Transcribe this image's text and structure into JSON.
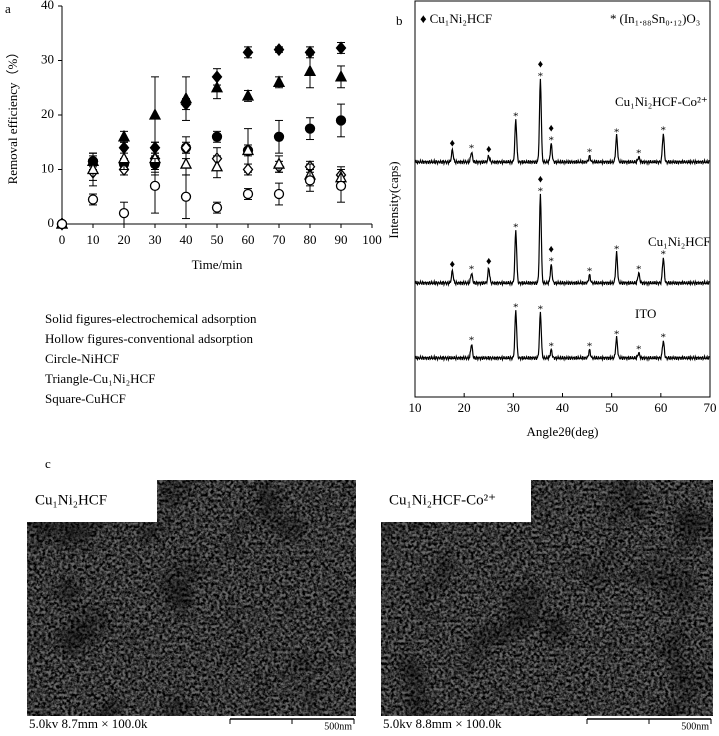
{
  "chart_data": [
    {
      "type": "scatter",
      "panel": "a",
      "xlabel": "Time/min",
      "ylabel": "Removal efficiency（%）",
      "x": [
        0,
        10,
        20,
        30,
        40,
        50,
        60,
        70,
        80,
        90
      ],
      "xlim": [
        0,
        100
      ],
      "xticks": [
        0,
        10,
        20,
        30,
        40,
        50,
        60,
        70,
        80,
        90,
        100
      ],
      "ylim": [
        0,
        40
      ],
      "yticks": [
        0,
        10,
        20,
        30,
        40
      ],
      "series": [
        {
          "marker": "diamond",
          "filled": true,
          "values": [
            0,
            11.5,
            14,
            14,
            22,
            27,
            31.5,
            32,
            31.5,
            32.3
          ],
          "errors": [
            0,
            1,
            1,
            1,
            1,
            1.5,
            1,
            0.5,
            1,
            1
          ]
        },
        {
          "marker": "triangle",
          "filled": true,
          "values": [
            0,
            11.5,
            16,
            20,
            23,
            25,
            23.5,
            26,
            28,
            27
          ],
          "errors": [
            0,
            1.5,
            1,
            7,
            4,
            2,
            1,
            1,
            3,
            2
          ]
        },
        {
          "marker": "circle",
          "filled": true,
          "values": [
            0,
            11.5,
            11,
            11,
            14,
            16,
            13.5,
            16,
            17.5,
            19
          ],
          "errors": [
            0,
            1.5,
            1,
            1.5,
            1,
            1,
            4,
            3,
            2,
            3
          ]
        },
        {
          "marker": "diamond",
          "filled": false,
          "values": [
            0,
            9.5,
            10,
            12,
            14,
            12,
            10,
            10.5,
            10.5,
            9
          ],
          "errors": [
            0,
            1.5,
            1,
            2,
            2,
            2,
            1,
            1,
            1,
            1
          ]
        },
        {
          "marker": "triangle",
          "filled": false,
          "values": [
            0,
            10,
            12,
            12,
            11,
            10.5,
            13.5,
            11,
            9,
            8.5
          ],
          "errors": [
            0,
            3,
            2,
            3,
            2,
            2,
            1,
            1.5,
            2,
            2
          ]
        },
        {
          "marker": "circle",
          "filled": false,
          "values": [
            0,
            4.5,
            2,
            7,
            5,
            3,
            5.5,
            5.5,
            8,
            7
          ],
          "errors": [
            0,
            1,
            2,
            5,
            4,
            1,
            1,
            2,
            2,
            3
          ]
        }
      ],
      "notes": [
        "Solid figures-electrochemical adsorption",
        "Hollow figures-conventional adsorption",
        "Circle-NiHCF",
        "Triangle-Cu₁Ni₂HCF",
        "Square-CuHCF"
      ]
    },
    {
      "type": "xrd",
      "panel": "b",
      "xlabel": "Angle2θ(deg)",
      "ylabel": "Intensity(caps)",
      "xlim": [
        10,
        70
      ],
      "xticks": [
        10,
        20,
        30,
        40,
        50,
        60,
        70
      ],
      "legend": [
        {
          "symbol": "♦",
          "name": "Cu₁Ni₂HCF"
        },
        {
          "symbol": "*",
          "name": "(In₁.₈₈Sn₀.₁₂)O₃"
        }
      ],
      "series": [
        {
          "name": "Cu₁Ni₂HCF-Co²⁺",
          "peaks": [
            {
              "angle": 17.6,
              "intensity": 12,
              "phase": "diamond"
            },
            {
              "angle": 21.5,
              "intensity": 10,
              "phase": "star"
            },
            {
              "angle": 25,
              "intensity": 6,
              "phase": "diamond"
            },
            {
              "angle": 30.5,
              "intensity": 42,
              "phase": "star"
            },
            {
              "angle": 35.5,
              "intensity": 82,
              "phase": "both"
            },
            {
              "angle": 37.7,
              "intensity": 18,
              "phase": "both"
            },
            {
              "angle": 45.5,
              "intensity": 6,
              "phase": "star"
            },
            {
              "angle": 51,
              "intensity": 26,
              "phase": "star"
            },
            {
              "angle": 55.5,
              "intensity": 5,
              "phase": "star"
            },
            {
              "angle": 60.5,
              "intensity": 28,
              "phase": "star"
            }
          ]
        },
        {
          "name": "Cu₁Ni₂HCF",
          "peaks": [
            {
              "angle": 17.6,
              "intensity": 12,
              "phase": "diamond"
            },
            {
              "angle": 21.5,
              "intensity": 10,
              "phase": "star"
            },
            {
              "angle": 25,
              "intensity": 15,
              "phase": "diamond"
            },
            {
              "angle": 30.5,
              "intensity": 52,
              "phase": "star"
            },
            {
              "angle": 35.5,
              "intensity": 88,
              "phase": "both"
            },
            {
              "angle": 37.7,
              "intensity": 18,
              "phase": "both"
            },
            {
              "angle": 45.5,
              "intensity": 8,
              "phase": "star"
            },
            {
              "angle": 51,
              "intensity": 30,
              "phase": "star"
            },
            {
              "angle": 55.5,
              "intensity": 10,
              "phase": "star"
            },
            {
              "angle": 60.5,
              "intensity": 25,
              "phase": "star"
            }
          ]
        },
        {
          "name": "ITO",
          "peaks": [
            {
              "angle": 21.5,
              "intensity": 14,
              "phase": "star"
            },
            {
              "angle": 30.5,
              "intensity": 47,
              "phase": "star"
            },
            {
              "angle": 35.5,
              "intensity": 45,
              "phase": "star"
            },
            {
              "angle": 37.7,
              "intensity": 8,
              "phase": "star"
            },
            {
              "angle": 45.5,
              "intensity": 8,
              "phase": "star"
            },
            {
              "angle": 51,
              "intensity": 20,
              "phase": "star"
            },
            {
              "angle": 55.5,
              "intensity": 5,
              "phase": "star"
            },
            {
              "angle": 60.5,
              "intensity": 17,
              "phase": "star"
            }
          ]
        }
      ]
    }
  ],
  "sem": {
    "panel": "c",
    "images": [
      {
        "label": "Cu₁Ni₂HCF",
        "info": "5.0kv 8.7mm × 100.0k",
        "scale": "500nm"
      },
      {
        "label": "Cu₁Ni₂HCF-Co²⁺",
        "info": "5.0kv 8.8mm × 100.0k",
        "scale": "500nm"
      }
    ]
  }
}
